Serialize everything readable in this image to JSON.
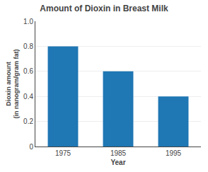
{
  "chart_data": {
    "type": "bar",
    "title": "Amount of Dioxin in Breast Milk",
    "categories": [
      "1975",
      "1985",
      "1995"
    ],
    "values": [
      0.8,
      0.6,
      0.4
    ],
    "xlabel": "Year",
    "ylabel": "Dioxin amount\n(in nanogram/gram fat)",
    "ylim": [
      0,
      1.0
    ],
    "yticks": [
      0,
      0.2,
      0.4,
      0.6,
      0.8,
      {
        "value": 1.0,
        "label": "1.0"
      }
    ],
    "grid": true
  }
}
